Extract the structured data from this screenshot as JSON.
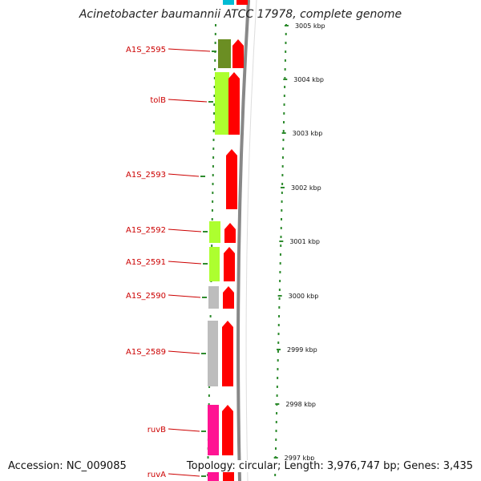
{
  "title": "Acinetobacter baumannii ATCC 17978, complete genome",
  "footer": {
    "accession": "Accession: NC_009085",
    "summary": "Topology: circular; Length: 3,976,747 bp; Genes: 3,435"
  },
  "colors": {
    "label_red": "#cc0000",
    "cds_red": "#ff0000",
    "olive": "#6b8e23",
    "light_green": "#adff2f",
    "gray": "#bdbdbd",
    "pink": "#ff1493",
    "cyan": "#00bcd4",
    "tick_green": "#2e8b2e",
    "backbone": "#888888"
  },
  "genes": [
    {
      "label": "A1S_2595",
      "color_key": "olive"
    },
    {
      "label": "tolB",
      "color_key": "light_green"
    },
    {
      "label": "A1S_2593",
      "color_key": ""
    },
    {
      "label": "A1S_2592",
      "color_key": "light_green"
    },
    {
      "label": "A1S_2591",
      "color_key": "light_green"
    },
    {
      "label": "A1S_2590",
      "color_key": "gray"
    },
    {
      "label": "A1S_2589",
      "color_key": "gray"
    },
    {
      "label": "ruvB",
      "color_key": "pink"
    },
    {
      "label": "ruvA",
      "color_key": "pink"
    }
  ],
  "ticks": [
    "3005 kbp",
    "3004 kbp",
    "3003 kbp",
    "3002 kbp",
    "3001 kbp",
    "3000 kbp",
    "2999 kbp",
    "2998 kbp",
    "2997 kbp"
  ]
}
